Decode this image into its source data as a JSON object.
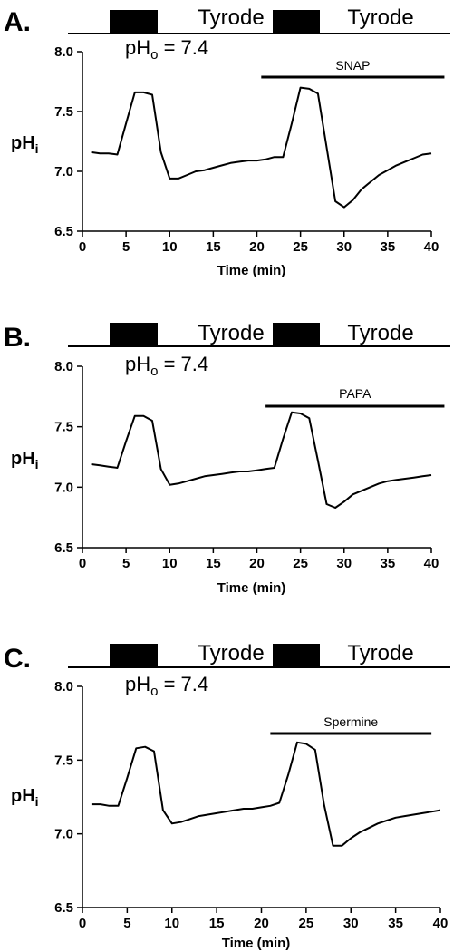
{
  "figure": {
    "panels": [
      {
        "letter": "A.",
        "protocol": {
          "labels": [
            "Tyrode",
            "Tyrode"
          ],
          "pho_label": "pH",
          "pho_sub": "o",
          "pho_value": " = 7.4"
        },
        "drug": {
          "label": "SNAP",
          "start": 20.5,
          "end": 41.5
        }
      },
      {
        "letter": "B.",
        "protocol": {
          "labels": [
            "Tyrode",
            "Tyrode"
          ],
          "pho_label": "pH",
          "pho_sub": "o",
          "pho_value": " = 7.4"
        },
        "drug": {
          "label": "PAPA",
          "start": 21,
          "end": 41.5
        }
      },
      {
        "letter": "C.",
        "protocol": {
          "labels": [
            "Tyrode",
            "Tyrode"
          ],
          "pho_label": "pH",
          "pho_sub": "o",
          "pho_value": " = 7.4"
        },
        "drug": {
          "label": "Spermine",
          "start": 21,
          "end": 39
        }
      }
    ]
  },
  "chart_data": [
    {
      "type": "line",
      "title": "",
      "xlabel": "Time (min)",
      "ylabel": "pH",
      "ylabel_sub": "i",
      "xlim": [
        0,
        40
      ],
      "ylim": [
        6.5,
        8.0
      ],
      "xticks": [
        0,
        5,
        10,
        15,
        20,
        25,
        30,
        35,
        40
      ],
      "yticks": [
        6.5,
        7.0,
        7.5,
        8.0
      ],
      "ytick_labels": [
        "6.5",
        "7.0",
        "7.5",
        "8.0"
      ],
      "series": [
        {
          "x": [
            1,
            2,
            3,
            4,
            5,
            6,
            7,
            8,
            9,
            10,
            11,
            12,
            13,
            14,
            15,
            16,
            17,
            18,
            19,
            20,
            21,
            22,
            23,
            24,
            25,
            26,
            27,
            28,
            29,
            30,
            31,
            32,
            33,
            34,
            35,
            36,
            37,
            38,
            39,
            40
          ],
          "y": [
            7.16,
            7.15,
            7.15,
            7.14,
            7.4,
            7.66,
            7.66,
            7.64,
            7.16,
            6.94,
            6.94,
            6.97,
            7.0,
            7.01,
            7.03,
            7.05,
            7.07,
            7.08,
            7.09,
            7.09,
            7.1,
            7.12,
            7.12,
            7.4,
            7.7,
            7.69,
            7.65,
            7.2,
            6.75,
            6.7,
            6.76,
            6.85,
            6.91,
            6.97,
            7.01,
            7.05,
            7.08,
            7.11,
            7.14,
            7.15
          ]
        }
      ]
    },
    {
      "type": "line",
      "title": "",
      "xlabel": "Time (min)",
      "ylabel": "pH",
      "ylabel_sub": "i",
      "xlim": [
        0,
        40
      ],
      "ylim": [
        6.5,
        8.0
      ],
      "xticks": [
        0,
        5,
        10,
        15,
        20,
        25,
        30,
        35,
        40
      ],
      "yticks": [
        6.5,
        7.0,
        7.5,
        8.0
      ],
      "ytick_labels": [
        "6.5",
        "7.0",
        "7.5",
        "8.0"
      ],
      "series": [
        {
          "x": [
            1,
            2,
            3,
            4,
            5,
            6,
            7,
            8,
            9,
            10,
            11,
            12,
            13,
            14,
            15,
            16,
            17,
            18,
            19,
            20,
            21,
            22,
            23,
            24,
            25,
            26,
            27,
            28,
            29,
            30,
            31,
            32,
            33,
            34,
            35,
            36,
            37,
            38,
            39,
            40
          ],
          "y": [
            7.19,
            7.18,
            7.17,
            7.16,
            7.38,
            7.59,
            7.59,
            7.55,
            7.15,
            7.02,
            7.03,
            7.05,
            7.07,
            7.09,
            7.1,
            7.11,
            7.12,
            7.13,
            7.13,
            7.14,
            7.15,
            7.16,
            7.4,
            7.62,
            7.61,
            7.57,
            7.22,
            6.86,
            6.83,
            6.88,
            6.94,
            6.97,
            7.0,
            7.03,
            7.05,
            7.06,
            7.07,
            7.08,
            7.09,
            7.1
          ]
        }
      ]
    },
    {
      "type": "line",
      "title": "",
      "xlabel": "Time (min)",
      "ylabel": "pH",
      "ylabel_sub": "i",
      "xlim": [
        0,
        40
      ],
      "ylim": [
        6.5,
        8.0
      ],
      "xticks": [
        0,
        5,
        10,
        15,
        20,
        25,
        30,
        35,
        40
      ],
      "yticks": [
        6.5,
        7.0,
        7.5,
        8.0
      ],
      "ytick_labels": [
        "6.5",
        "7.0",
        "7.5",
        "8.0"
      ],
      "series": [
        {
          "x": [
            1,
            2,
            3,
            4,
            5,
            6,
            7,
            8,
            9,
            10,
            11,
            12,
            13,
            14,
            15,
            16,
            17,
            18,
            19,
            20,
            21,
            22,
            23,
            24,
            25,
            26,
            27,
            28,
            29,
            30,
            31,
            32,
            33,
            34,
            35,
            36,
            37,
            38,
            39,
            40
          ],
          "y": [
            7.2,
            7.2,
            7.19,
            7.19,
            7.38,
            7.58,
            7.59,
            7.56,
            7.16,
            7.07,
            7.08,
            7.1,
            7.12,
            7.13,
            7.14,
            7.15,
            7.16,
            7.17,
            7.17,
            7.18,
            7.19,
            7.21,
            7.4,
            7.62,
            7.61,
            7.57,
            7.2,
            6.92,
            6.92,
            6.97,
            7.01,
            7.04,
            7.07,
            7.09,
            7.11,
            7.12,
            7.13,
            7.14,
            7.15,
            7.16
          ]
        }
      ]
    }
  ]
}
